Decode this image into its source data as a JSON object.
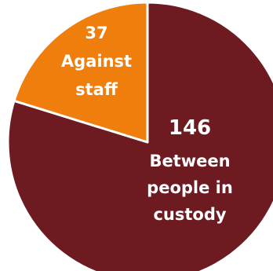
{
  "chart_data": {
    "type": "pie",
    "title": "",
    "slices": [
      {
        "value": 146,
        "value_label": "146",
        "label_lines": [
          "Between",
          "people in",
          "custody"
        ],
        "color": "#6d1a21"
      },
      {
        "value": 37,
        "value_label": "37",
        "label_lines": [
          "Against",
          "staff"
        ],
        "color": "#f07e0c"
      }
    ],
    "start_angle_deg": 0,
    "direction": "clockwise",
    "separator_color": "#ffffff",
    "legend": "none"
  }
}
